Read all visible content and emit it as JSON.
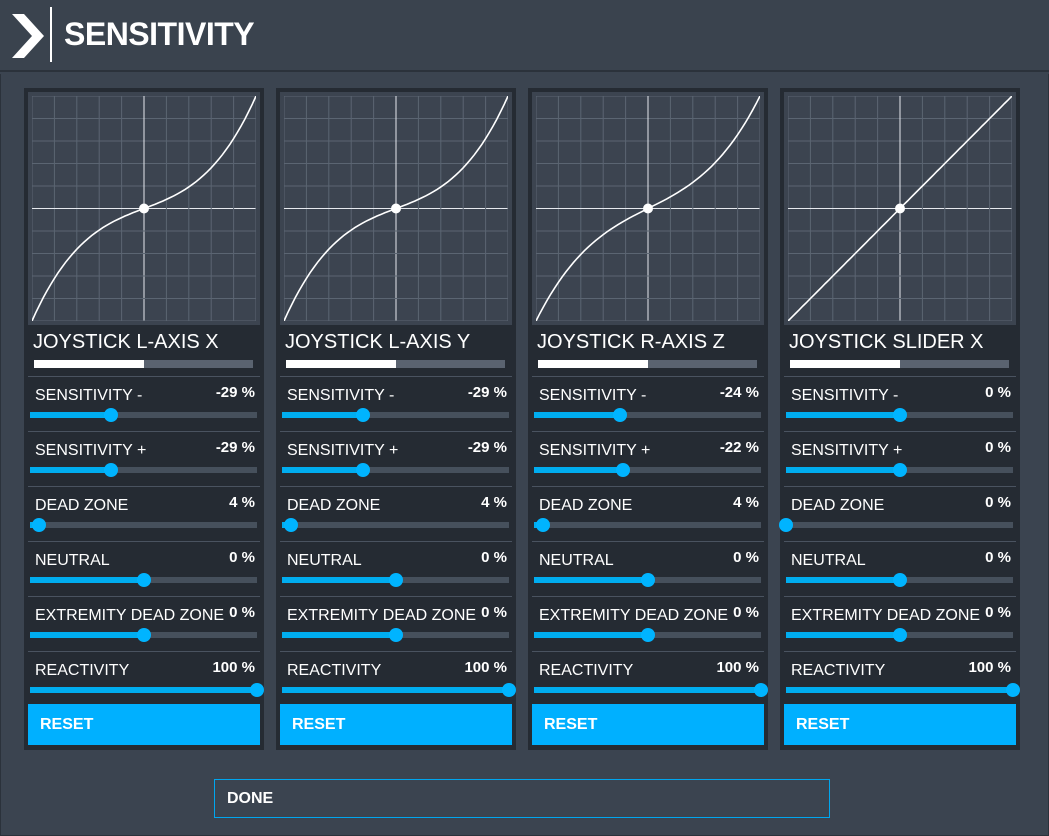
{
  "header": {
    "title": "SENSITIVITY"
  },
  "panels": [
    {
      "axis": "JOYSTICK L-AXIS X",
      "axis_level": 0.5,
      "curve": "s",
      "settings": [
        {
          "label": "SENSITIVITY -",
          "value": "-29 %",
          "level": 0.355
        },
        {
          "label": "SENSITIVITY +",
          "value": "-29 %",
          "level": 0.355
        },
        {
          "label": "DEAD ZONE",
          "value": "4 %",
          "level": 0.04
        },
        {
          "label": "NEUTRAL",
          "value": "0 %",
          "level": 0.5
        },
        {
          "label": "EXTREMITY DEAD ZONE",
          "value": "0 %",
          "level": 0.5
        },
        {
          "label": "REACTIVITY",
          "value": "100 %",
          "level": 1.0
        }
      ],
      "reset_label": "RESET"
    },
    {
      "axis": "JOYSTICK L-AXIS Y",
      "axis_level": 0.5,
      "curve": "s",
      "settings": [
        {
          "label": "SENSITIVITY -",
          "value": "-29 %",
          "level": 0.355
        },
        {
          "label": "SENSITIVITY +",
          "value": "-29 %",
          "level": 0.355
        },
        {
          "label": "DEAD ZONE",
          "value": "4 %",
          "level": 0.04
        },
        {
          "label": "NEUTRAL",
          "value": "0 %",
          "level": 0.5
        },
        {
          "label": "EXTREMITY DEAD ZONE",
          "value": "0 %",
          "level": 0.5
        },
        {
          "label": "REACTIVITY",
          "value": "100 %",
          "level": 1.0
        }
      ],
      "reset_label": "RESET"
    },
    {
      "axis": "JOYSTICK R-AXIS Z",
      "axis_level": 0.5,
      "curve": "s-light",
      "settings": [
        {
          "label": "SENSITIVITY -",
          "value": "-24 %",
          "level": 0.38
        },
        {
          "label": "SENSITIVITY +",
          "value": "-22 %",
          "level": 0.39
        },
        {
          "label": "DEAD ZONE",
          "value": "4 %",
          "level": 0.04
        },
        {
          "label": "NEUTRAL",
          "value": "0 %",
          "level": 0.5
        },
        {
          "label": "EXTREMITY DEAD ZONE",
          "value": "0 %",
          "level": 0.5
        },
        {
          "label": "REACTIVITY",
          "value": "100 %",
          "level": 1.0
        }
      ],
      "reset_label": "RESET"
    },
    {
      "axis": "JOYSTICK SLIDER X",
      "axis_level": 0.5,
      "curve": "linear",
      "settings": [
        {
          "label": "SENSITIVITY -",
          "value": "0 %",
          "level": 0.5
        },
        {
          "label": "SENSITIVITY +",
          "value": "0 %",
          "level": 0.5
        },
        {
          "label": "DEAD ZONE",
          "value": "0 %",
          "level": 0.0
        },
        {
          "label": "NEUTRAL",
          "value": "0 %",
          "level": 0.5
        },
        {
          "label": "EXTREMITY DEAD ZONE",
          "value": "0 %",
          "level": 0.5
        },
        {
          "label": "REACTIVITY",
          "value": "100 %",
          "level": 1.0
        }
      ],
      "reset_label": "RESET"
    }
  ],
  "footer": {
    "done_label": "DONE"
  },
  "colors": {
    "accent": "#00b0ff",
    "background": "#3b4450",
    "panel": "#252b33",
    "graph": "#3c4450"
  }
}
